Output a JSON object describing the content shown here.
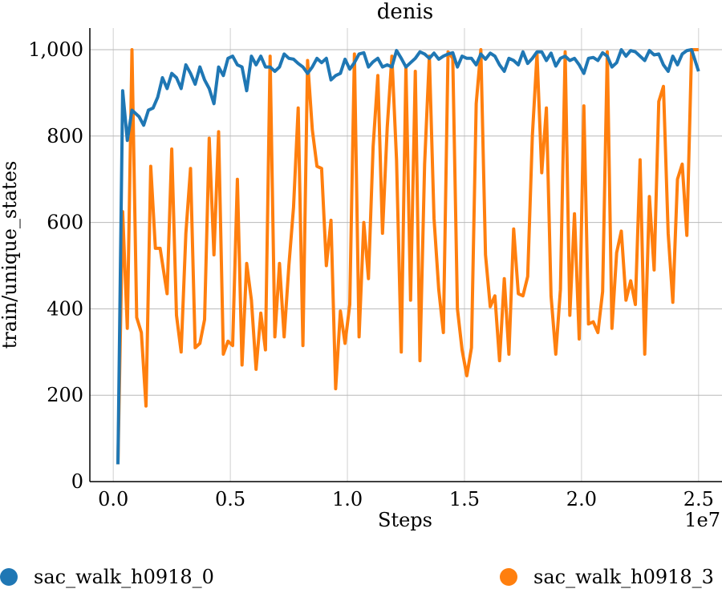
{
  "chart_data": {
    "type": "line",
    "title": "denis",
    "xlabel": "Steps",
    "ylabel": "train/unique_states",
    "x_offset_label": "1e7",
    "xlim": [
      -0.1,
      2.6
    ],
    "ylim": [
      0,
      1000
    ],
    "x_ticks": [
      0.0,
      0.5,
      1.0,
      1.5,
      2.0,
      2.5
    ],
    "x_tick_labels": [
      "0.0",
      "0.5",
      "1.0",
      "1.5",
      "2.0",
      "2.5"
    ],
    "y_ticks": [
      0,
      200,
      400,
      600,
      800,
      1000
    ],
    "y_tick_labels": [
      "0",
      "200",
      "400",
      "600",
      "800",
      "1,000"
    ],
    "grid": true,
    "legend_position": "bottom",
    "series": [
      {
        "name": "sac_walk_h0918_0",
        "color": "#1f77b4",
        "x": [
          0.02,
          0.04,
          0.06,
          0.08,
          0.11,
          0.13,
          0.15,
          0.17,
          0.19,
          0.21,
          0.23,
          0.25,
          0.27,
          0.29,
          0.31,
          0.33,
          0.35,
          0.37,
          0.39,
          0.41,
          0.43,
          0.45,
          0.47,
          0.49,
          0.51,
          0.53,
          0.55,
          0.57,
          0.59,
          0.61,
          0.63,
          0.65,
          0.67,
          0.69,
          0.71,
          0.73,
          0.75,
          0.77,
          0.79,
          0.81,
          0.83,
          0.85,
          0.87,
          0.89,
          0.91,
          0.93,
          0.95,
          0.97,
          0.99,
          1.01,
          1.03,
          1.05,
          1.07,
          1.09,
          1.11,
          1.13,
          1.15,
          1.17,
          1.19,
          1.21,
          1.23,
          1.25,
          1.27,
          1.29,
          1.31,
          1.33,
          1.35,
          1.37,
          1.39,
          1.41,
          1.43,
          1.45,
          1.47,
          1.49,
          1.51,
          1.53,
          1.55,
          1.57,
          1.59,
          1.61,
          1.63,
          1.65,
          1.67,
          1.69,
          1.71,
          1.73,
          1.75,
          1.77,
          1.79,
          1.81,
          1.83,
          1.85,
          1.87,
          1.89,
          1.91,
          1.93,
          1.95,
          1.97,
          1.99,
          2.01,
          2.03,
          2.05,
          2.07,
          2.09,
          2.11,
          2.13,
          2.15,
          2.17,
          2.19,
          2.21,
          2.23,
          2.25,
          2.27,
          2.29,
          2.31,
          2.33,
          2.35,
          2.37,
          2.39,
          2.41,
          2.43,
          2.45,
          2.47,
          2.5
        ],
        "y": [
          40,
          905,
          790,
          860,
          845,
          825,
          860,
          865,
          890,
          935,
          910,
          945,
          935,
          910,
          965,
          945,
          920,
          960,
          930,
          910,
          875,
          960,
          940,
          980,
          985,
          965,
          960,
          905,
          985,
          965,
          985,
          960,
          960,
          950,
          960,
          990,
          980,
          978,
          968,
          960,
          945,
          960,
          980,
          970,
          980,
          930,
          940,
          945,
          978,
          955,
          970,
          990,
          993,
          960,
          972,
          980,
          960,
          965,
          960,
          998,
          980,
          960,
          970,
          980,
          995,
          990,
          980,
          992,
          978,
          985,
          990,
          993,
          960,
          985,
          980,
          980,
          965,
          990,
          978,
          992,
          985,
          965,
          950,
          980,
          975,
          965,
          995,
          968,
          980,
          995,
          995,
          975,
          992,
          962,
          980,
          985,
          975,
          980,
          965,
          945,
          980,
          982,
          975,
          993,
          985,
          960,
          970,
          1000,
          985,
          998,
          995,
          985,
          975,
          998,
          988,
          990,
          965,
          950,
          985,
          965,
          990,
          998,
          1000,
          950
        ]
      },
      {
        "name": "sac_walk_h0918_3",
        "color": "#ff7f0e",
        "x": [
          0.02,
          0.04,
          0.06,
          0.08,
          0.1,
          0.12,
          0.14,
          0.16,
          0.18,
          0.2,
          0.23,
          0.25,
          0.27,
          0.29,
          0.31,
          0.33,
          0.35,
          0.37,
          0.39,
          0.41,
          0.43,
          0.45,
          0.47,
          0.49,
          0.51,
          0.53,
          0.55,
          0.57,
          0.59,
          0.61,
          0.63,
          0.65,
          0.67,
          0.69,
          0.71,
          0.73,
          0.75,
          0.77,
          0.79,
          0.81,
          0.83,
          0.85,
          0.87,
          0.89,
          0.91,
          0.93,
          0.95,
          0.97,
          0.99,
          1.01,
          1.03,
          1.05,
          1.07,
          1.09,
          1.11,
          1.13,
          1.15,
          1.17,
          1.19,
          1.21,
          1.23,
          1.25,
          1.27,
          1.29,
          1.31,
          1.33,
          1.35,
          1.37,
          1.39,
          1.41,
          1.43,
          1.45,
          1.47,
          1.49,
          1.51,
          1.53,
          1.55,
          1.57,
          1.59,
          1.61,
          1.63,
          1.65,
          1.67,
          1.69,
          1.71,
          1.73,
          1.75,
          1.77,
          1.79,
          1.81,
          1.83,
          1.85,
          1.87,
          1.89,
          1.91,
          1.93,
          1.95,
          1.97,
          1.99,
          2.01,
          2.03,
          2.05,
          2.07,
          2.09,
          2.11,
          2.13,
          2.15,
          2.17,
          2.19,
          2.21,
          2.23,
          2.25,
          2.27,
          2.29,
          2.31,
          2.33,
          2.35,
          2.37,
          2.39,
          2.41,
          2.43,
          2.45,
          2.47,
          2.5
        ],
        "y": [
          40,
          625,
          355,
          1000,
          380,
          345,
          175,
          730,
          540,
          540,
          435,
          770,
          385,
          300,
          575,
          725,
          310,
          320,
          375,
          795,
          525,
          810,
          295,
          325,
          315,
          700,
          270,
          505,
          420,
          260,
          390,
          305,
          985,
          335,
          505,
          335,
          500,
          635,
          865,
          315,
          975,
          815,
          730,
          725,
          500,
          605,
          215,
          395,
          320,
          410,
          990,
          335,
          600,
          470,
          775,
          940,
          575,
          820,
          985,
          745,
          300,
          960,
          420,
          950,
          280,
          735,
          985,
          610,
          445,
          345,
          995,
          980,
          400,
          305,
          245,
          310,
          875,
          1000,
          525,
          405,
          430,
          280,
          470,
          295,
          585,
          435,
          430,
          475,
          800,
          990,
          715,
          865,
          430,
          295,
          445,
          995,
          385,
          620,
          330,
          870,
          365,
          370,
          345,
          440,
          995,
          355,
          530,
          580,
          420,
          465,
          410,
          745,
          295,
          660,
          490,
          880,
          915,
          575,
          415,
          700,
          735,
          570,
          1000,
          1000
        ]
      }
    ]
  }
}
